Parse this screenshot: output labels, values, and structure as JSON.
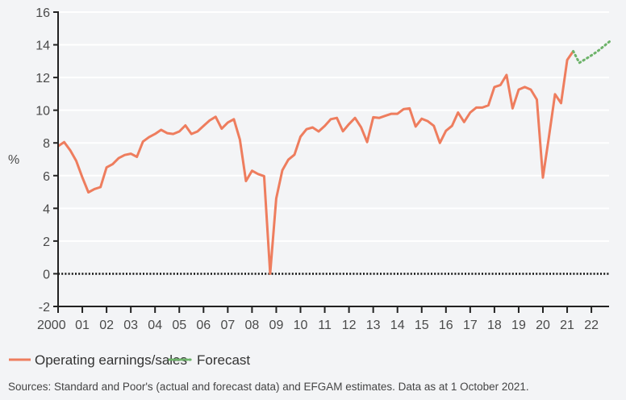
{
  "chart_data": {
    "type": "line",
    "title": "",
    "xlabel": "",
    "ylabel": "%",
    "ylim": [
      -2,
      16
    ],
    "xlim": [
      2000,
      2022.75
    ],
    "grid": true,
    "legend_placement": "bottom-left",
    "y_ticks": [
      "-2",
      "0",
      "2",
      "4",
      "6",
      "8",
      "10",
      "12",
      "14",
      "16"
    ],
    "x_ticks": [
      "2000",
      "01",
      "02",
      "03",
      "04",
      "05",
      "06",
      "07",
      "08",
      "09",
      "10",
      "11",
      "12",
      "13",
      "14",
      "15",
      "16",
      "17",
      "18",
      "19",
      "20",
      "21",
      "22"
    ],
    "series": [
      {
        "name": "Operating earnings/sales",
        "color": "#ee7d5e",
        "style": "solid",
        "x_start": 2000.0,
        "x_step": 0.25,
        "values": [
          7.8,
          8.05,
          7.55,
          6.9,
          5.9,
          4.98,
          5.18,
          5.3,
          6.5,
          6.7,
          7.07,
          7.26,
          7.34,
          7.15,
          8.08,
          8.35,
          8.55,
          8.8,
          8.6,
          8.55,
          8.7,
          9.07,
          8.55,
          8.7,
          9.04,
          9.37,
          9.6,
          8.87,
          9.25,
          9.45,
          8.2,
          5.67,
          6.3,
          6.1,
          5.97,
          0,
          4.6,
          6.33,
          6.98,
          7.28,
          8.38,
          8.84,
          8.95,
          8.7,
          9.04,
          9.45,
          9.53,
          8.71,
          9.15,
          9.53,
          8.96,
          8.05,
          9.57,
          9.53,
          9.66,
          9.78,
          9.78,
          10.06,
          10.11,
          9.0,
          9.48,
          9.33,
          9.04,
          8.0,
          8.74,
          9.04,
          9.86,
          9.28,
          9.86,
          10.16,
          10.16,
          10.3,
          11.42,
          11.54,
          12.16,
          10.11,
          11.26,
          11.42,
          11.26,
          10.65,
          5.88,
          8.38,
          10.98,
          10.43,
          13.07,
          13.61
        ]
      },
      {
        "name": "Forecast",
        "color": "#6db36a",
        "style": "dotted",
        "x_start": 2021.25,
        "x_step": 0.25,
        "values": [
          13.61,
          12.9,
          13.12,
          13.35,
          13.6,
          13.9,
          14.2
        ]
      }
    ],
    "reference_line": {
      "y": 0,
      "style": "dotted",
      "color": "#111111"
    }
  },
  "legend": {
    "actual_label": "Operating earnings/sales",
    "forecast_label": "Forecast"
  },
  "source": "Sources: Standard and Poor's (actual and forecast data) and EFGAM estimates. Data as at 1 October 2021."
}
